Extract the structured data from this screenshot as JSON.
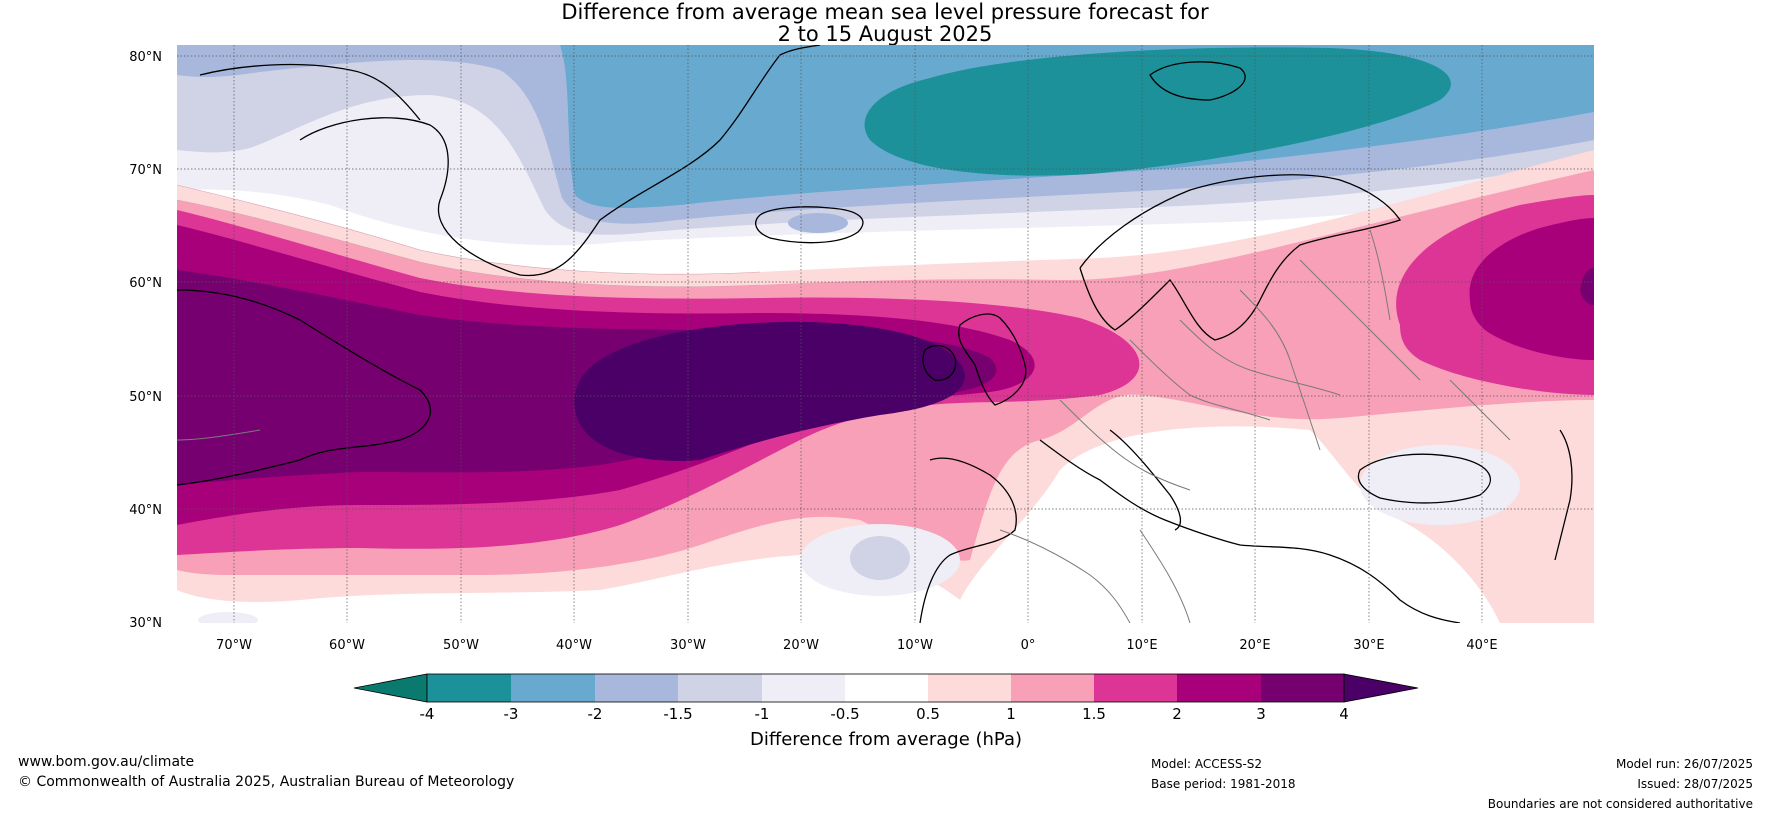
{
  "title_line1": "Difference from average mean sea level pressure forecast for",
  "title_line2": "2 to 15 August 2025",
  "map": {
    "lat_ticks": [
      "80°N",
      "70°N",
      "60°N",
      "50°N",
      "40°N",
      "30°N"
    ],
    "lon_ticks": [
      "70°W",
      "60°W",
      "50°W",
      "40°W",
      "30°W",
      "20°W",
      "10°W",
      "0°",
      "10°E",
      "20°E",
      "30°E",
      "40°E"
    ],
    "extent": {
      "lon": [
        -75,
        50
      ],
      "lat": [
        30,
        81
      ]
    }
  },
  "colorbar": {
    "label": "Difference from average (hPa)",
    "ticks": [
      "-4",
      "-3",
      "-2",
      "-1.5",
      "-1",
      "-0.5",
      "0.5",
      "1",
      "1.5",
      "2",
      "3",
      "4"
    ],
    "colors": [
      "#0a7a6f",
      "#1c9199",
      "#67a9cf",
      "#a8b8dc",
      "#d0d2e6",
      "#efeef6",
      "#ffffff",
      "#fddbdb",
      "#f8a0b8",
      "#dc3596",
      "#a8007a",
      "#760070",
      "#4a0066"
    ]
  },
  "footer": {
    "site": "www.bom.gov.au/climate",
    "copyright": "© Commonwealth of Australia 2025, Australian Bureau of Meteorology",
    "model": "Model: ACCESS-S2",
    "base_period": "Base period: 1981-2018",
    "model_run": "Model run: 26/07/2025",
    "issued": "Issued: 28/07/2025",
    "disclaimer": "Boundaries are not considered authoritative"
  }
}
